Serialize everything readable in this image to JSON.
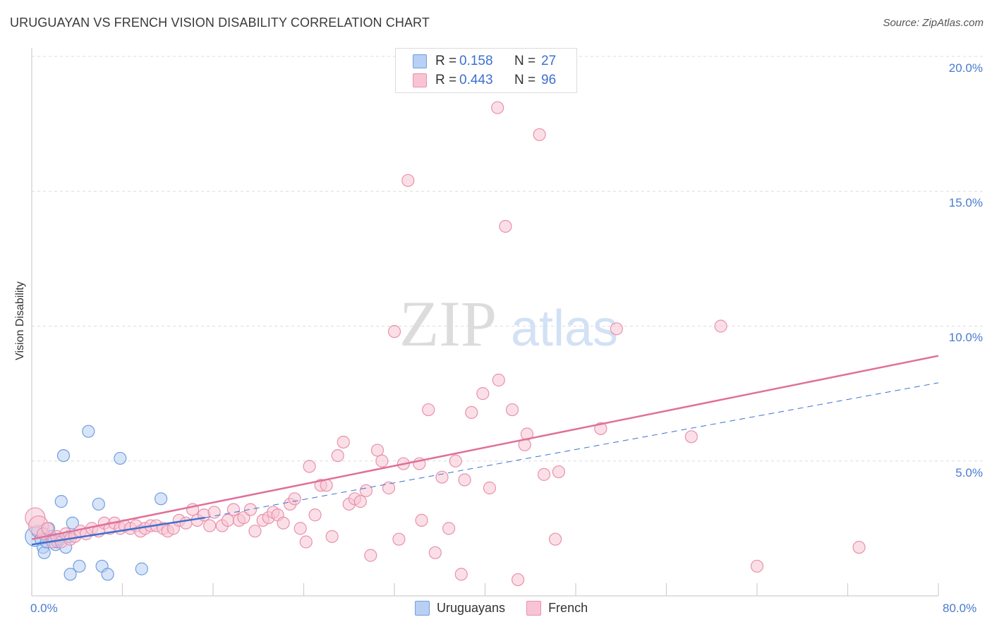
{
  "header": {
    "title": "URUGUAYAN VS FRENCH VISION DISABILITY CORRELATION CHART",
    "source": "Source: ZipAtlas.com"
  },
  "watermark": {
    "zip": "ZIP",
    "atlas": "atlas"
  },
  "colors": {
    "uruguayan_fill": "#b8d0f4",
    "uruguayan_stroke": "#6f9ee0",
    "uruguayan_line": "#3d70cf",
    "french_fill": "#f8c4d4",
    "french_stroke": "#e891ad",
    "french_line": "#e0709a",
    "grid": "#dcdcdc",
    "tick_text": "#4a7bd0"
  },
  "legend": {
    "rows": [
      {
        "r_label": "R =",
        "r_value": "0.158",
        "n_label": "N =",
        "n_value": "27"
      },
      {
        "r_label": "R =",
        "r_value": "0.443",
        "n_label": "N =",
        "n_value": "96"
      }
    ]
  },
  "chart_data": {
    "type": "scatter",
    "title": "URUGUAYAN VS FRENCH VISION DISABILITY CORRELATION CHART",
    "xlabel": "",
    "ylabel": "Vision Disability",
    "xlim": [
      0,
      80
    ],
    "ylim": [
      0,
      20
    ],
    "x_tick_labels": [
      "0.0%",
      "80.0%"
    ],
    "y_ticks": [
      5,
      10,
      15,
      20
    ],
    "y_tick_labels": [
      "5.0%",
      "10.0%",
      "15.0%",
      "20.0%"
    ],
    "grid": true,
    "legend_position": "bottom-center",
    "series": [
      {
        "name": "Uruguayans",
        "r": 0.158,
        "n": 27,
        "trend_solid": {
          "x": [
            0.0,
            15.3
          ],
          "y": [
            1.9,
            2.9
          ]
        },
        "trend_dashed": {
          "x": [
            15.3,
            80.0
          ],
          "y": [
            2.9,
            7.9
          ]
        },
        "points": [
          {
            "x": 0.3,
            "y": 2.2,
            "s": 2
          },
          {
            "x": 0.5,
            "y": 2.4,
            "s": 1
          },
          {
            "x": 0.8,
            "y": 2.1,
            "s": 1
          },
          {
            "x": 1.0,
            "y": 1.8,
            "s": 1
          },
          {
            "x": 1.1,
            "y": 1.6,
            "s": 1
          },
          {
            "x": 1.3,
            "y": 2.0,
            "s": 1
          },
          {
            "x": 1.5,
            "y": 2.5,
            "s": 1
          },
          {
            "x": 1.7,
            "y": 2.2,
            "s": 1
          },
          {
            "x": 1.9,
            "y": 2.0,
            "s": 1
          },
          {
            "x": 2.0,
            "y": 2.1,
            "s": 1
          },
          {
            "x": 2.1,
            "y": 1.9,
            "s": 1
          },
          {
            "x": 2.3,
            "y": 2.0,
            "s": 1
          },
          {
            "x": 2.5,
            "y": 2.1,
            "s": 1
          },
          {
            "x": 2.6,
            "y": 3.5,
            "s": 1
          },
          {
            "x": 2.8,
            "y": 5.2,
            "s": 1
          },
          {
            "x": 3.0,
            "y": 1.8,
            "s": 1
          },
          {
            "x": 3.3,
            "y": 2.2,
            "s": 1
          },
          {
            "x": 3.4,
            "y": 0.8,
            "s": 1
          },
          {
            "x": 3.6,
            "y": 2.7,
            "s": 1
          },
          {
            "x": 4.2,
            "y": 1.1,
            "s": 1
          },
          {
            "x": 5.0,
            "y": 6.1,
            "s": 1
          },
          {
            "x": 5.9,
            "y": 3.4,
            "s": 1
          },
          {
            "x": 6.2,
            "y": 1.1,
            "s": 1
          },
          {
            "x": 6.7,
            "y": 0.8,
            "s": 1
          },
          {
            "x": 7.8,
            "y": 5.1,
            "s": 1
          },
          {
            "x": 9.7,
            "y": 1.0,
            "s": 1
          },
          {
            "x": 11.4,
            "y": 3.6,
            "s": 1
          }
        ]
      },
      {
        "name": "French",
        "r": 0.443,
        "n": 96,
        "trend_solid": {
          "x": [
            0.0,
            80.0
          ],
          "y": [
            2.1,
            8.9
          ]
        },
        "points": [
          {
            "x": 0.3,
            "y": 2.9,
            "s": 2
          },
          {
            "x": 0.6,
            "y": 2.6,
            "s": 2
          },
          {
            "x": 1.0,
            "y": 2.3,
            "s": 1
          },
          {
            "x": 1.4,
            "y": 2.5,
            "s": 1
          },
          {
            "x": 1.8,
            "y": 2.0,
            "s": 1
          },
          {
            "x": 2.2,
            "y": 2.2,
            "s": 1
          },
          {
            "x": 2.6,
            "y": 2.0,
            "s": 1
          },
          {
            "x": 3.0,
            "y": 2.3,
            "s": 1
          },
          {
            "x": 3.4,
            "y": 2.1,
            "s": 1
          },
          {
            "x": 3.8,
            "y": 2.2,
            "s": 1
          },
          {
            "x": 4.3,
            "y": 2.4,
            "s": 1
          },
          {
            "x": 4.8,
            "y": 2.3,
            "s": 1
          },
          {
            "x": 5.3,
            "y": 2.5,
            "s": 1
          },
          {
            "x": 5.9,
            "y": 2.4,
            "s": 1
          },
          {
            "x": 6.4,
            "y": 2.7,
            "s": 1
          },
          {
            "x": 6.9,
            "y": 2.5,
            "s": 1
          },
          {
            "x": 7.3,
            "y": 2.7,
            "s": 1
          },
          {
            "x": 7.8,
            "y": 2.5,
            "s": 1
          },
          {
            "x": 8.2,
            "y": 2.6,
            "s": 1
          },
          {
            "x": 8.7,
            "y": 2.5,
            "s": 1
          },
          {
            "x": 9.2,
            "y": 2.6,
            "s": 1
          },
          {
            "x": 9.6,
            "y": 2.4,
            "s": 1
          },
          {
            "x": 10.0,
            "y": 2.5,
            "s": 1
          },
          {
            "x": 10.5,
            "y": 2.6,
            "s": 1
          },
          {
            "x": 11.0,
            "y": 2.6,
            "s": 1
          },
          {
            "x": 11.6,
            "y": 2.5,
            "s": 1
          },
          {
            "x": 12.0,
            "y": 2.4,
            "s": 1
          },
          {
            "x": 12.5,
            "y": 2.5,
            "s": 1
          },
          {
            "x": 13.0,
            "y": 2.8,
            "s": 1
          },
          {
            "x": 13.6,
            "y": 2.7,
            "s": 1
          },
          {
            "x": 14.2,
            "y": 3.2,
            "s": 1
          },
          {
            "x": 14.6,
            "y": 2.8,
            "s": 1
          },
          {
            "x": 15.2,
            "y": 3.0,
            "s": 1
          },
          {
            "x": 15.7,
            "y": 2.6,
            "s": 1
          },
          {
            "x": 16.1,
            "y": 3.1,
            "s": 1
          },
          {
            "x": 16.8,
            "y": 2.6,
            "s": 1
          },
          {
            "x": 17.3,
            "y": 2.8,
            "s": 1
          },
          {
            "x": 17.8,
            "y": 3.2,
            "s": 1
          },
          {
            "x": 18.3,
            "y": 2.8,
            "s": 1
          },
          {
            "x": 18.7,
            "y": 2.9,
            "s": 1
          },
          {
            "x": 19.3,
            "y": 3.2,
            "s": 1
          },
          {
            "x": 19.7,
            "y": 2.4,
            "s": 1
          },
          {
            "x": 20.4,
            "y": 2.8,
            "s": 1
          },
          {
            "x": 20.9,
            "y": 2.9,
            "s": 1
          },
          {
            "x": 21.3,
            "y": 3.1,
            "s": 1
          },
          {
            "x": 21.7,
            "y": 3.0,
            "s": 1
          },
          {
            "x": 22.2,
            "y": 2.7,
            "s": 1
          },
          {
            "x": 22.8,
            "y": 3.4,
            "s": 1
          },
          {
            "x": 23.2,
            "y": 3.6,
            "s": 1
          },
          {
            "x": 23.7,
            "y": 2.5,
            "s": 1
          },
          {
            "x": 24.2,
            "y": 2.0,
            "s": 1
          },
          {
            "x": 24.5,
            "y": 4.8,
            "s": 1
          },
          {
            "x": 25.0,
            "y": 3.0,
            "s": 1
          },
          {
            "x": 25.5,
            "y": 4.1,
            "s": 1
          },
          {
            "x": 26.0,
            "y": 4.1,
            "s": 1
          },
          {
            "x": 26.5,
            "y": 2.2,
            "s": 1
          },
          {
            "x": 27.0,
            "y": 5.2,
            "s": 1
          },
          {
            "x": 27.5,
            "y": 5.7,
            "s": 1
          },
          {
            "x": 28.0,
            "y": 3.4,
            "s": 1
          },
          {
            "x": 28.5,
            "y": 3.6,
            "s": 1
          },
          {
            "x": 29.0,
            "y": 3.5,
            "s": 1
          },
          {
            "x": 29.5,
            "y": 3.9,
            "s": 1
          },
          {
            "x": 29.9,
            "y": 1.5,
            "s": 1
          },
          {
            "x": 30.5,
            "y": 5.4,
            "s": 1
          },
          {
            "x": 30.9,
            "y": 5.0,
            "s": 1
          },
          {
            "x": 31.5,
            "y": 4.0,
            "s": 1
          },
          {
            "x": 32.0,
            "y": 9.8,
            "s": 1
          },
          {
            "x": 32.4,
            "y": 2.1,
            "s": 1
          },
          {
            "x": 32.8,
            "y": 4.9,
            "s": 1
          },
          {
            "x": 33.2,
            "y": 15.4,
            "s": 1
          },
          {
            "x": 34.2,
            "y": 4.9,
            "s": 1
          },
          {
            "x": 34.4,
            "y": 2.8,
            "s": 1
          },
          {
            "x": 35.0,
            "y": 6.9,
            "s": 1
          },
          {
            "x": 35.6,
            "y": 1.6,
            "s": 1
          },
          {
            "x": 36.2,
            "y": 4.4,
            "s": 1
          },
          {
            "x": 36.8,
            "y": 2.5,
            "s": 1
          },
          {
            "x": 37.4,
            "y": 5.0,
            "s": 1
          },
          {
            "x": 37.9,
            "y": 0.8,
            "s": 1
          },
          {
            "x": 38.2,
            "y": 4.3,
            "s": 1
          },
          {
            "x": 38.8,
            "y": 6.8,
            "s": 1
          },
          {
            "x": 39.8,
            "y": 7.5,
            "s": 1
          },
          {
            "x": 40.4,
            "y": 4.0,
            "s": 1
          },
          {
            "x": 41.1,
            "y": 18.1,
            "s": 1
          },
          {
            "x": 41.2,
            "y": 8.0,
            "s": 1
          },
          {
            "x": 41.8,
            "y": 13.7,
            "s": 1
          },
          {
            "x": 42.4,
            "y": 6.9,
            "s": 1
          },
          {
            "x": 42.9,
            "y": 0.6,
            "s": 1
          },
          {
            "x": 43.5,
            "y": 5.6,
            "s": 1
          },
          {
            "x": 43.7,
            "y": 6.0,
            "s": 1
          },
          {
            "x": 44.8,
            "y": 17.1,
            "s": 1
          },
          {
            "x": 45.2,
            "y": 4.5,
            "s": 1
          },
          {
            "x": 46.2,
            "y": 2.1,
            "s": 1
          },
          {
            "x": 46.5,
            "y": 4.6,
            "s": 1
          },
          {
            "x": 50.2,
            "y": 6.2,
            "s": 1
          },
          {
            "x": 51.6,
            "y": 9.9,
            "s": 1
          },
          {
            "x": 58.2,
            "y": 5.9,
            "s": 1
          },
          {
            "x": 60.8,
            "y": 10.0,
            "s": 1
          },
          {
            "x": 64.0,
            "y": 1.1,
            "s": 1
          },
          {
            "x": 73.0,
            "y": 1.8,
            "s": 1
          }
        ]
      }
    ]
  }
}
